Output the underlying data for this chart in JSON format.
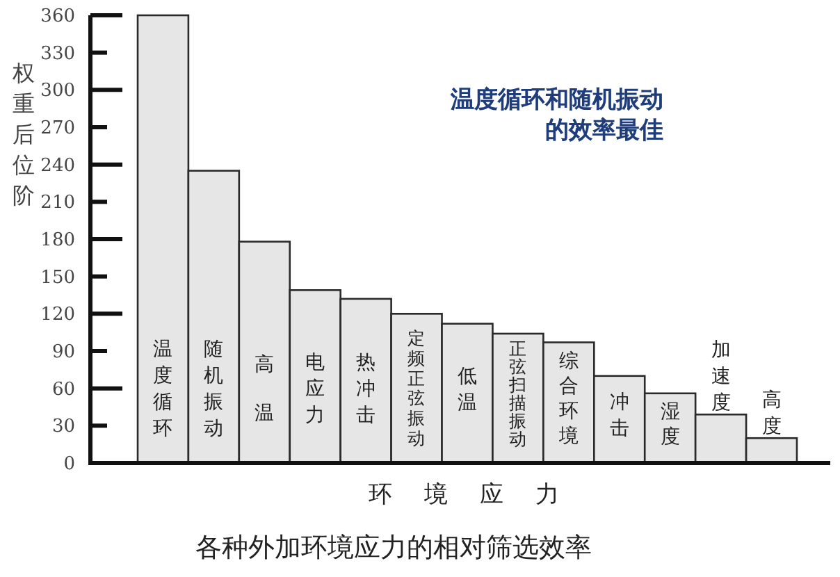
{
  "chart_data": {
    "type": "bar",
    "title": "各种外加环境应力的相对筛选效率",
    "xlabel": "环境应力",
    "ylabel": "权重后位阶",
    "categories": [
      "温度循环",
      "随机振动",
      "高温",
      "电应力",
      "热冲击",
      "定频正弦振动",
      "低温",
      "正弦扫描振动",
      "综合环境",
      "冲击",
      "湿度",
      "加速度",
      "高度"
    ],
    "values": [
      360,
      235,
      178,
      139,
      132,
      120,
      112,
      104,
      97,
      70,
      56,
      39,
      20
    ],
    "color": "#e6e6e6",
    "ylim": [
      0,
      360
    ],
    "yticks": [
      0,
      30,
      60,
      90,
      120,
      150,
      180,
      210,
      240,
      270,
      300,
      330,
      360
    ],
    "annotations": [
      "温度循环和随机振动的效率最佳"
    ]
  }
}
